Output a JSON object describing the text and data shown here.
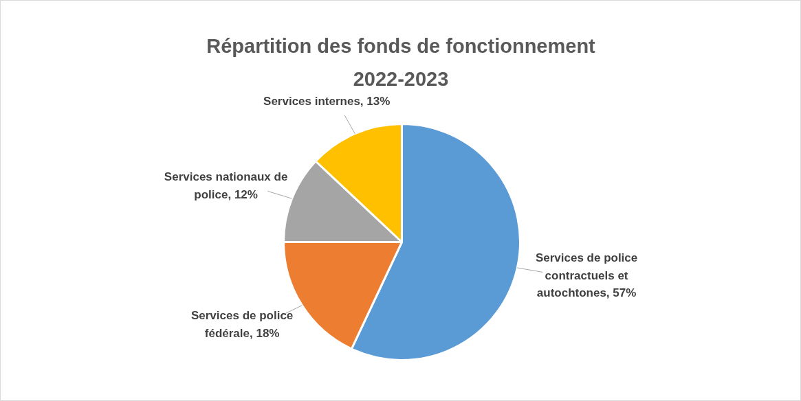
{
  "chart_data": {
    "type": "pie",
    "title": "Répartition des fonds de fonctionnement\n2022-2023",
    "categories": [
      "Services de police contractuels et autochtones",
      "Services de police fédérale",
      "Services nationaux de police",
      "Services internes"
    ],
    "values": [
      57,
      18,
      12,
      13
    ],
    "value_labels": [
      "57%",
      "18%",
      "12%",
      "13%"
    ],
    "colors": [
      "#5b9bd5",
      "#ed7d31",
      "#a5a5a5",
      "#ffc000"
    ]
  }
}
